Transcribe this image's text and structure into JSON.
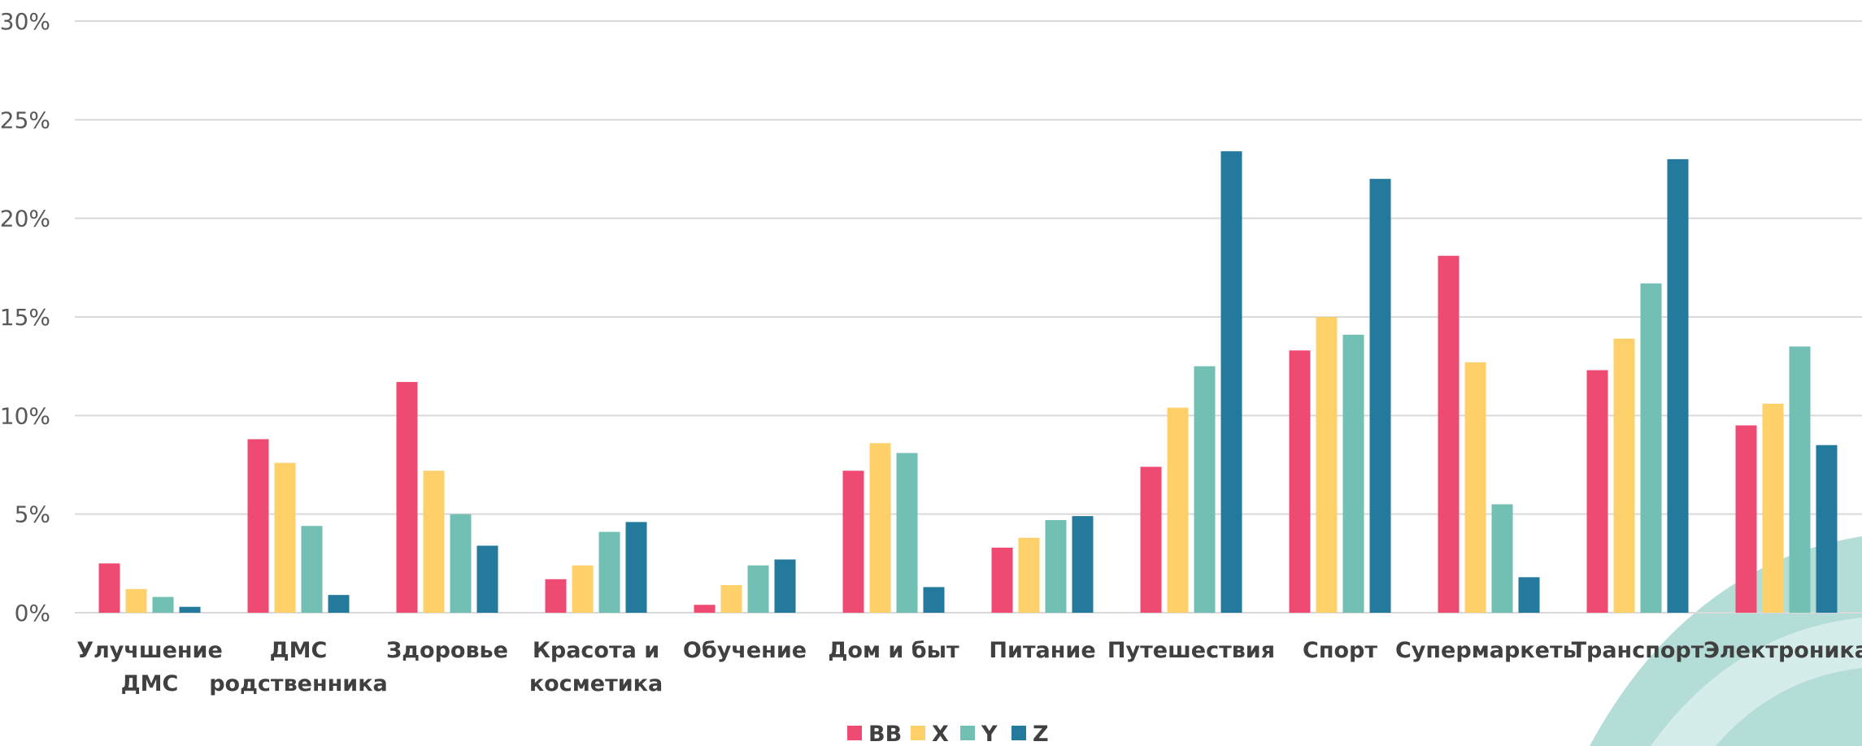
{
  "chart_data": {
    "type": "bar",
    "categories": [
      [
        "Улучшение",
        "ДМС"
      ],
      [
        "ДМС",
        "родственника"
      ],
      [
        "Здоровье"
      ],
      [
        "Красота и",
        "косметика"
      ],
      [
        "Обучение"
      ],
      [
        "Дом и быт"
      ],
      [
        "Питание"
      ],
      [
        "Путешествия"
      ],
      [
        "Спорт"
      ],
      [
        "Супермаркеты"
      ],
      [
        "Транспорт"
      ],
      [
        "Электроника"
      ]
    ],
    "series": [
      {
        "name": "BB",
        "color": "#ee4a72",
        "values": [
          2.5,
          8.8,
          11.7,
          1.7,
          0.4,
          7.2,
          3.3,
          7.4,
          13.3,
          18.1,
          12.3,
          9.5
        ]
      },
      {
        "name": "X",
        "color": "#fdd06a",
        "values": [
          1.2,
          7.6,
          7.2,
          2.4,
          1.4,
          8.6,
          3.8,
          10.4,
          15.0,
          12.7,
          13.9,
          10.6
        ]
      },
      {
        "name": "Y",
        "color": "#72bfb4",
        "values": [
          0.8,
          4.4,
          5.0,
          4.1,
          2.4,
          8.1,
          4.7,
          12.5,
          14.1,
          5.5,
          16.7,
          13.5
        ]
      },
      {
        "name": "Z",
        "color": "#247a9c",
        "values": [
          0.3,
          0.9,
          3.4,
          4.6,
          2.7,
          1.3,
          4.9,
          23.4,
          22.0,
          1.8,
          23.0,
          8.5
        ]
      }
    ],
    "ylim": [
      0,
      30
    ],
    "yticks": [
      "0%",
      "5%",
      "10%",
      "15%",
      "20%",
      "25%",
      "30%"
    ],
    "grid": true,
    "legend_position": "bottom"
  },
  "colors": {
    "grid": "#d9d9d9",
    "decor_dark": "#b4ddd8",
    "decor_light": "#d4ecea"
  }
}
